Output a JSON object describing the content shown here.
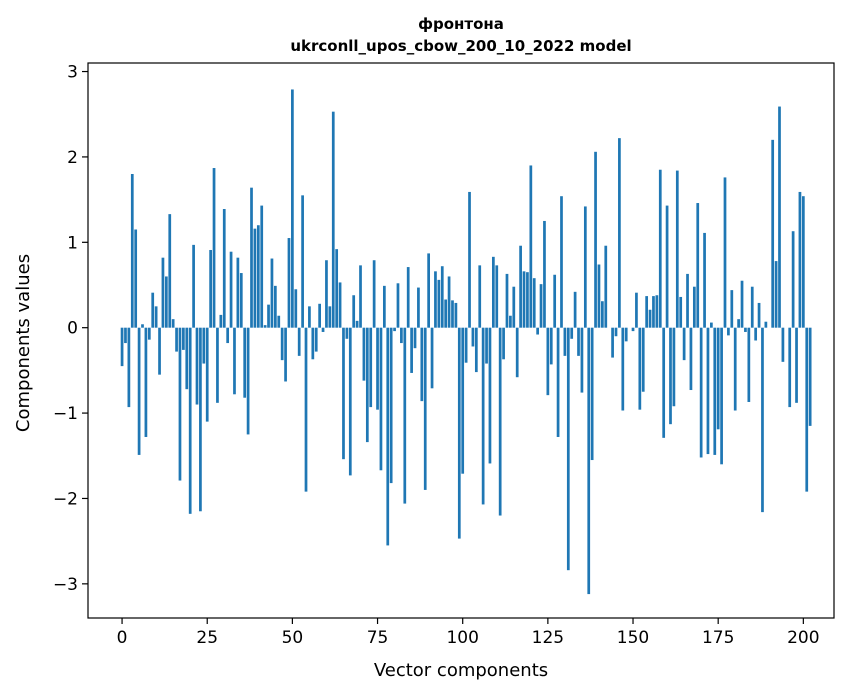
{
  "chart_data": {
    "type": "bar",
    "title_line1": "фронтона",
    "title_line2": "ukrconll_upos_cbow_200_10_2022 model",
    "xlabel": "Vector components",
    "ylabel": "Components values",
    "xlim": [
      -10,
      209
    ],
    "ylim": [
      -3.4,
      3.1
    ],
    "xticks": [
      0,
      25,
      50,
      75,
      100,
      125,
      150,
      175,
      200
    ],
    "yticks": [
      -3,
      -2,
      -1,
      0,
      1,
      2,
      3
    ],
    "xtick_labels": [
      "0",
      "25",
      "50",
      "75",
      "100",
      "125",
      "150",
      "175",
      "200"
    ],
    "ytick_labels": [
      "−3",
      "−2",
      "−1",
      "0",
      "1",
      "2",
      "3"
    ],
    "grid": false,
    "bar_color": "#1f77b4",
    "values": [
      -0.45,
      -0.18,
      -0.93,
      1.8,
      1.15,
      -1.49,
      0.04,
      -1.28,
      -0.14,
      0.41,
      0.25,
      -0.55,
      0.82,
      0.6,
      1.33,
      0.1,
      -0.28,
      -1.79,
      -0.26,
      -0.72,
      -2.18,
      0.97,
      -0.9,
      -2.15,
      -0.42,
      -1.1,
      0.91,
      1.87,
      -0.88,
      0.15,
      1.39,
      -0.18,
      0.89,
      -0.78,
      0.82,
      0.64,
      -0.82,
      -1.25,
      1.64,
      1.16,
      1.2,
      1.43,
      0.03,
      0.27,
      0.81,
      0.49,
      0.14,
      -0.38,
      -0.63,
      1.05,
      2.79,
      0.45,
      -0.33,
      1.55,
      -1.92,
      0.25,
      -0.37,
      -0.28,
      0.28,
      -0.05,
      0.79,
      0.25,
      2.53,
      0.92,
      0.53,
      -1.54,
      -0.13,
      -1.73,
      0.38,
      0.08,
      0.73,
      -0.62,
      -1.34,
      -0.93,
      0.79,
      -0.96,
      -1.67,
      0.49,
      -2.55,
      -1.82,
      -0.04,
      0.52,
      -0.18,
      -2.06,
      0.71,
      -0.53,
      -0.24,
      0.47,
      -0.86,
      -1.9,
      0.87,
      -0.71,
      0.66,
      0.56,
      0.72,
      0.33,
      0.6,
      0.32,
      0.29,
      -2.47,
      -1.71,
      -0.41,
      1.59,
      -0.22,
      -0.52,
      0.73,
      -2.07,
      -0.42,
      -1.59,
      0.83,
      0.73,
      -2.2,
      -0.37,
      0.63,
      0.14,
      0.48,
      -0.58,
      0.96,
      0.66,
      0.65,
      1.9,
      0.58,
      -0.08,
      0.51,
      1.25,
      -0.79,
      -0.43,
      0.62,
      -1.28,
      1.54,
      -0.33,
      -2.84,
      -0.13,
      0.42,
      -0.33,
      -0.76,
      1.42,
      -3.12,
      -1.55,
      2.06,
      0.74,
      0.31,
      0.96,
      0.0,
      -0.35,
      -0.1,
      2.22,
      -0.97,
      -0.16,
      0.0,
      -0.04,
      0.41,
      -0.96,
      -0.75,
      0.37,
      0.21,
      0.37,
      0.38,
      1.85,
      -1.29,
      1.43,
      -1.13,
      -0.92,
      1.84,
      0.36,
      -0.38,
      0.63,
      -0.73,
      0.48,
      1.46,
      -1.52,
      1.11,
      -1.48,
      0.06,
      -1.49,
      -1.19,
      -1.6,
      1.76,
      -0.09,
      0.44,
      -0.97,
      0.1,
      0.55,
      -0.05,
      -0.87,
      0.48,
      -0.15,
      0.29,
      -2.16,
      0.07,
      0.0,
      2.2,
      0.78,
      2.59,
      -0.4,
      0.0,
      -0.93,
      1.13,
      -0.88,
      1.59,
      1.54,
      -1.92,
      -1.15
    ]
  }
}
